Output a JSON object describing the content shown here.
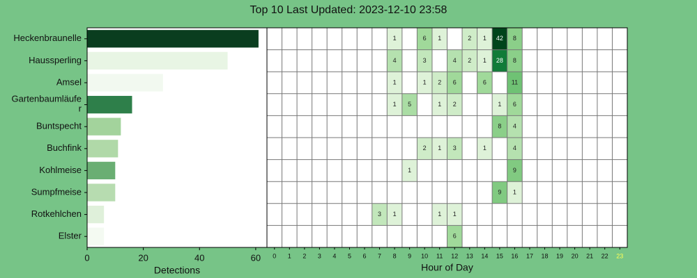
{
  "title": "Top 10 Last Updated: 2023-12-10 23:58",
  "chart_data": [
    {
      "type": "barh",
      "categories": [
        "Heckenbraunelle",
        "Haussperling",
        "Amsel",
        "Gartenbaumläufe\nr",
        "Buntspecht",
        "Buchfink",
        "Kohlmeise",
        "Sumpfmeise",
        "Rotkehlchen",
        "Elster"
      ],
      "values": [
        61,
        50,
        27,
        16,
        12,
        11,
        10,
        10,
        6,
        6
      ],
      "colors": [
        "#0a3d1f",
        "#e8f5e4",
        "#f2f9f0",
        "#2e7f4a",
        "#a3d39c",
        "#b0d9a8",
        "#6aae73",
        "#b7dcb0",
        "#dff0da",
        "#f4faf2"
      ],
      "xlim": [
        0,
        64
      ],
      "xticks": [
        0,
        20,
        40,
        60
      ],
      "xlabel": "Detections"
    },
    {
      "type": "heatmap",
      "xticks": [
        0,
        1,
        2,
        3,
        4,
        5,
        6,
        7,
        8,
        9,
        10,
        11,
        12,
        13,
        14,
        15,
        16,
        17,
        18,
        19,
        20,
        21,
        22,
        23
      ],
      "xlabel": "Hour of Day",
      "colormap": "Greens",
      "highlight_xtick": 23,
      "highlight_color": "#ffff55",
      "values": [
        [
          null,
          null,
          null,
          null,
          null,
          null,
          null,
          null,
          1,
          null,
          6,
          1,
          null,
          2,
          1,
          42,
          8,
          null,
          null,
          null,
          null,
          null,
          null,
          null
        ],
        [
          null,
          null,
          null,
          null,
          null,
          null,
          null,
          null,
          4,
          null,
          3,
          null,
          4,
          2,
          1,
          28,
          8,
          null,
          null,
          null,
          null,
          null,
          null,
          null
        ],
        [
          null,
          null,
          null,
          null,
          null,
          null,
          null,
          null,
          1,
          null,
          1,
          2,
          6,
          null,
          6,
          null,
          11,
          null,
          null,
          null,
          null,
          null,
          null,
          null
        ],
        [
          null,
          null,
          null,
          null,
          null,
          null,
          null,
          null,
          1,
          5,
          null,
          1,
          2,
          null,
          null,
          1,
          6,
          null,
          null,
          null,
          null,
          null,
          null,
          null
        ],
        [
          null,
          null,
          null,
          null,
          null,
          null,
          null,
          null,
          null,
          null,
          null,
          null,
          null,
          null,
          null,
          8,
          4,
          null,
          null,
          null,
          null,
          null,
          null,
          null
        ],
        [
          null,
          null,
          null,
          null,
          null,
          null,
          null,
          null,
          null,
          null,
          2,
          1,
          3,
          null,
          1,
          null,
          4,
          null,
          null,
          null,
          null,
          null,
          null,
          null
        ],
        [
          null,
          null,
          null,
          null,
          null,
          null,
          null,
          null,
          null,
          1,
          null,
          null,
          null,
          null,
          null,
          null,
          9,
          null,
          null,
          null,
          null,
          null,
          null,
          null
        ],
        [
          null,
          null,
          null,
          null,
          null,
          null,
          null,
          null,
          null,
          null,
          null,
          null,
          null,
          null,
          null,
          9,
          1,
          null,
          null,
          null,
          null,
          null,
          null,
          null
        ],
        [
          null,
          null,
          null,
          null,
          null,
          null,
          null,
          3,
          1,
          null,
          null,
          1,
          1,
          null,
          null,
          null,
          null,
          null,
          null,
          null,
          null,
          null,
          null,
          null
        ],
        [
          null,
          null,
          null,
          null,
          null,
          null,
          null,
          null,
          null,
          null,
          null,
          null,
          6,
          null,
          null,
          null,
          null,
          null,
          null,
          null,
          null,
          null,
          null,
          null
        ]
      ]
    }
  ]
}
